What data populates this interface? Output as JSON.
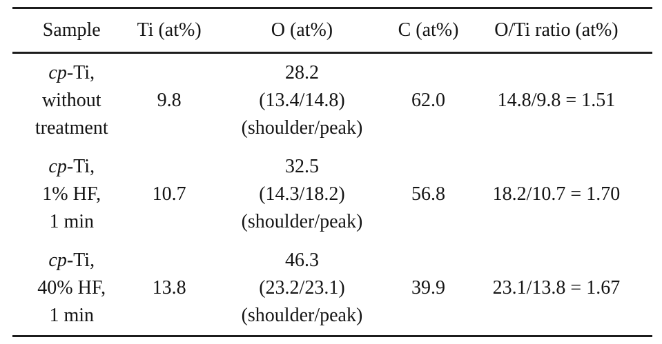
{
  "table": {
    "headers": [
      "Sample",
      "Ti (at%)",
      "O (at%)",
      "C (at%)",
      "O/Ti ratio (at%)"
    ],
    "rows": [
      {
        "sample_italic": "cp",
        "sample_line1_rest": "-Ti,",
        "sample_line2": "without",
        "sample_line3": "treatment",
        "ti": "9.8",
        "o_total": "28.2",
        "o_shoulder_peak": "(13.4/14.8)",
        "o_note": "(shoulder/peak)",
        "c": "62.0",
        "ratio": "14.8/9.8 = 1.51"
      },
      {
        "sample_italic": "cp",
        "sample_line1_rest": "-Ti,",
        "sample_line2": "1% HF,",
        "sample_line3": "1 min",
        "ti": "10.7",
        "o_total": "32.5",
        "o_shoulder_peak": "(14.3/18.2)",
        "o_note": "(shoulder/peak)",
        "c": "56.8",
        "ratio": "18.2/10.7 = 1.70"
      },
      {
        "sample_italic": "cp",
        "sample_line1_rest": "-Ti,",
        "sample_line2": "40% HF,",
        "sample_line3": "1 min",
        "ti": "13.8",
        "o_total": "46.3",
        "o_shoulder_peak": "(23.2/23.1)",
        "o_note": "(shoulder/peak)",
        "c": "39.9",
        "ratio": "23.1/13.8 = 1.67"
      }
    ]
  }
}
